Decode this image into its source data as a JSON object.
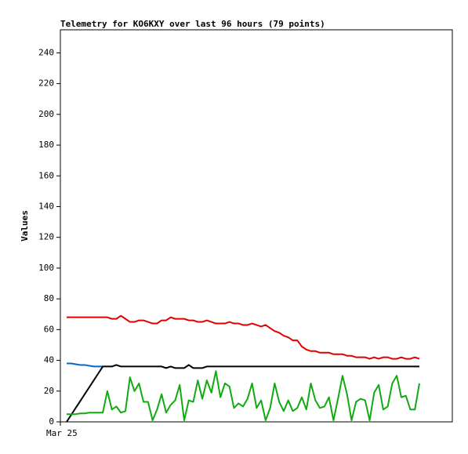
{
  "chart_data": {
    "type": "line",
    "title": "Telemetry for KO6KXY over last 96 hours (79 points)",
    "y_label": "Values",
    "x_start_label": "Mar 25",
    "categories": [
      null,
      null,
      null,
      null,
      null,
      null,
      null,
      null,
      null,
      null,
      null,
      null,
      null,
      null,
      null,
      null,
      null,
      null,
      null,
      null,
      null,
      null,
      null,
      null,
      null,
      null,
      null,
      null,
      null,
      null,
      null,
      null,
      null,
      null,
      null,
      null,
      null,
      null,
      null,
      null,
      null,
      null,
      null,
      null,
      null,
      null,
      null,
      null,
      null,
      null,
      null,
      null,
      null,
      null,
      null,
      null,
      null,
      null,
      null,
      null,
      null,
      null,
      null,
      null,
      null,
      null,
      null,
      null,
      null,
      null,
      null,
      null,
      null,
      null,
      null,
      null,
      null,
      null,
      null
    ],
    "ylim": [
      0,
      255
    ],
    "yticks": [
      0,
      20,
      40,
      60,
      80,
      100,
      120,
      140,
      160,
      180,
      200,
      220,
      240
    ],
    "series": [
      {
        "color": "#e00000",
        "values": [
          68,
          68,
          68,
          68,
          68,
          68,
          68,
          68,
          68,
          68,
          67,
          67,
          69,
          67,
          65,
          65,
          66,
          66,
          65,
          64,
          64,
          66,
          66,
          68,
          67,
          67,
          67,
          66,
          66,
          65,
          65,
          66,
          65,
          64,
          64,
          64,
          65,
          64,
          64,
          63,
          63,
          64,
          63,
          62,
          63,
          61,
          59,
          58,
          56,
          55,
          53,
          53,
          49,
          47,
          46,
          46,
          45,
          45,
          45,
          44,
          44,
          44,
          43,
          43,
          42,
          42,
          42,
          41,
          42,
          41,
          42,
          42,
          41,
          41,
          42,
          41,
          41,
          42,
          41
        ]
      },
      {
        "color": "#0066cc",
        "values": [
          38,
          38,
          37.5,
          37,
          37,
          36.5,
          36,
          36,
          36,
          null,
          null,
          null,
          null,
          null,
          null,
          null,
          null,
          null,
          null,
          null,
          null,
          null,
          null,
          null,
          null,
          null,
          null,
          null,
          null,
          null,
          null,
          null,
          null,
          null,
          null,
          null,
          null,
          null,
          null,
          null,
          null,
          null,
          null,
          null,
          null,
          null,
          null,
          null,
          null,
          null,
          null,
          null,
          null,
          null,
          null,
          null,
          null,
          null,
          null,
          null,
          null,
          null,
          null,
          null,
          null,
          null,
          null,
          null,
          null,
          null,
          null,
          null,
          null,
          null,
          null,
          null,
          null,
          null,
          null
        ]
      },
      {
        "color": "#000000",
        "values": [
          0,
          4.5,
          9,
          13.5,
          18,
          22.5,
          27,
          31.5,
          36,
          36,
          36,
          37,
          36,
          36,
          36,
          36,
          36,
          36,
          36,
          36,
          36,
          36,
          35,
          36,
          35,
          35,
          35,
          37,
          35,
          35,
          35,
          36,
          36,
          36,
          36,
          36,
          36,
          36,
          36,
          36,
          36,
          36,
          36,
          36,
          36,
          36,
          36,
          36,
          36,
          36,
          36,
          36,
          36,
          36,
          36,
          36,
          36,
          36,
          36,
          36,
          36,
          36,
          36,
          36,
          36,
          36,
          36,
          36,
          36,
          36,
          36,
          36,
          36,
          36,
          36,
          36,
          36,
          36,
          36
        ]
      },
      {
        "color": "#11aa11",
        "values": [
          5,
          5,
          5,
          5.5,
          5.5,
          6,
          6,
          6,
          6,
          20,
          8,
          10,
          6,
          7,
          29,
          20,
          25,
          13,
          13,
          1,
          8,
          18,
          6,
          11,
          14,
          24,
          1,
          14,
          13,
          27,
          15,
          27,
          19,
          33,
          16,
          25,
          23,
          9,
          12,
          10,
          15,
          25,
          9,
          14,
          1,
          9,
          25,
          13,
          7,
          14,
          7,
          9,
          16,
          8,
          25,
          14,
          9,
          10,
          16,
          1,
          15,
          30,
          18,
          1,
          13,
          15,
          14,
          1,
          19,
          24,
          8,
          10,
          25,
          30,
          16,
          17,
          8,
          8,
          25
        ]
      }
    ],
    "grid": false
  }
}
